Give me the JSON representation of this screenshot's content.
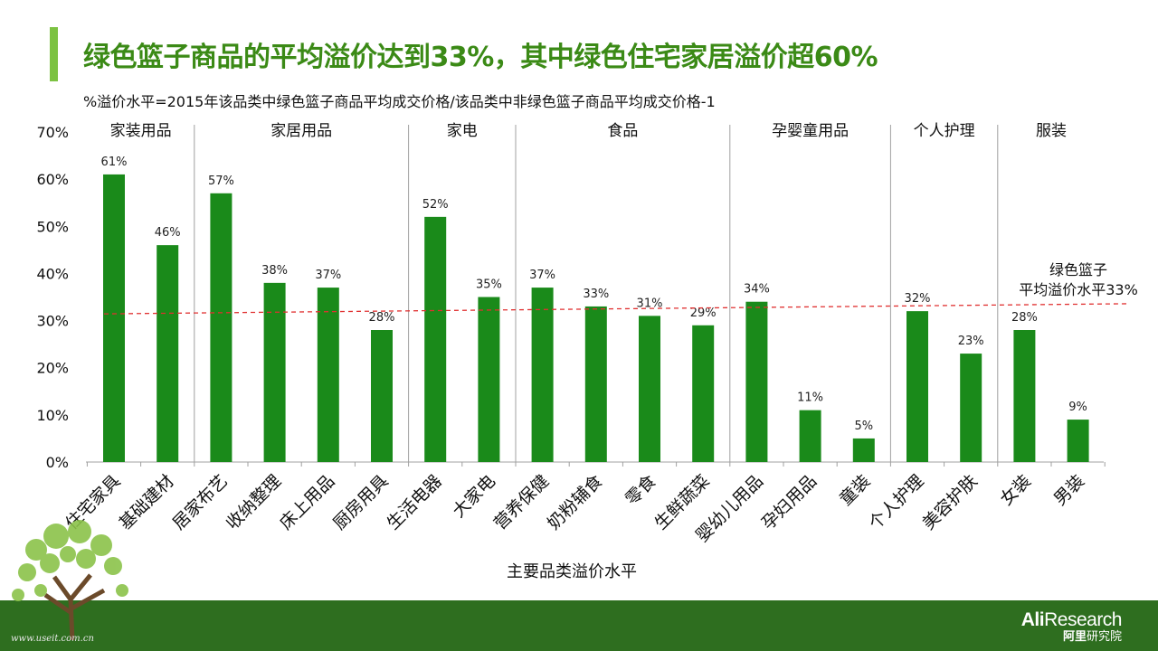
{
  "slide": {
    "title": "绿色篮子商品的平均溢价达到33%，其中绿色住宅家居溢价超60%",
    "subtitle": "%溢价水平=2015年该品类中绿色篮子商品平均成交价格/该品类中非绿色篮子商品平均成交价格-1",
    "watermark": "www.useit.com.cn",
    "logo_en_bold": "Ali",
    "logo_en_rest": "Research",
    "logo_cn_bold": "阿里",
    "logo_cn_rest": "研究院",
    "tree_icon": "tree-icon"
  },
  "chart_data": {
    "type": "bar",
    "xlabel": "主要品类溢价水平",
    "ylabel": "",
    "ylim": [
      0,
      0.7
    ],
    "yticks": [
      "0%",
      "10%",
      "20%",
      "30%",
      "40%",
      "50%",
      "60%",
      "70%"
    ],
    "categories": [
      "住宅家具",
      "基础建材",
      "居家布艺",
      "收纳整理",
      "床上用品",
      "厨房用具",
      "生活电器",
      "大家电",
      "营养保健",
      "奶粉辅食",
      "零食",
      "生鲜蔬菜",
      "婴幼儿用品",
      "孕妇用品",
      "童装",
      "个人护理",
      "美容护肤",
      "女装",
      "男装"
    ],
    "values": [
      0.61,
      0.46,
      0.57,
      0.38,
      0.37,
      0.28,
      0.52,
      0.35,
      0.37,
      0.33,
      0.31,
      0.29,
      0.34,
      0.11,
      0.05,
      0.32,
      0.23,
      0.28,
      0.09
    ],
    "data_labels": [
      "61%",
      "46%",
      "57%",
      "38%",
      "37%",
      "28%",
      "52%",
      "35%",
      "37%",
      "33%",
      "31%",
      "29%",
      "34%",
      "11%",
      "5%",
      "32%",
      "23%",
      "28%",
      "9%"
    ],
    "groups": [
      {
        "label": "家装用品",
        "count": 2
      },
      {
        "label": "家居用品",
        "count": 4
      },
      {
        "label": "家电",
        "count": 2
      },
      {
        "label": "食品",
        "count": 4
      },
      {
        "label": "孕婴童用品",
        "count": 3
      },
      {
        "label": "个人护理",
        "count": 2
      },
      {
        "label": "服装",
        "count": 2
      }
    ],
    "reference_line": {
      "value": 0.33,
      "label_lines": [
        "绿色篮子",
        "平均溢价水平33%"
      ]
    },
    "colors": {
      "bar": "#1a8a1a",
      "reference": "#e03030",
      "axis": "#a0a0a0",
      "divider": "#a0a0a0"
    },
    "grid": false
  }
}
